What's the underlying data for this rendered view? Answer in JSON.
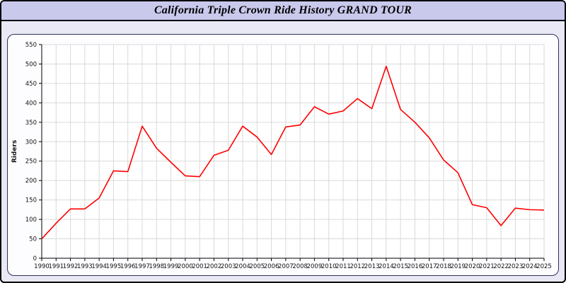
{
  "header": {
    "title": "California Triple Crown Ride History GRAND TOUR"
  },
  "chart_data": {
    "type": "line",
    "title": "California Triple Crown Ride History GRAND TOUR",
    "xlabel": "",
    "ylabel": "Riders",
    "ylim": [
      0,
      550
    ],
    "ytick_step": 50,
    "grid": true,
    "legend": "none",
    "x": [
      1990,
      1991,
      1992,
      1993,
      1994,
      1995,
      1996,
      1997,
      1998,
      1999,
      2000,
      2001,
      2002,
      2003,
      2004,
      2005,
      2006,
      2007,
      2008,
      2009,
      2010,
      2011,
      2012,
      2013,
      2014,
      2015,
      2016,
      2017,
      2018,
      2019,
      2020,
      2021,
      2022,
      2023,
      2024,
      2025
    ],
    "series": [
      {
        "name": "Riders",
        "color": "#ff0000",
        "values": [
          50,
          90,
          127,
          127,
          155,
          225,
          223,
          340,
          283,
          247,
          212,
          210,
          265,
          278,
          340,
          312,
          267,
          338,
          343,
          390,
          371,
          379,
          411,
          385,
          494,
          383,
          350,
          310,
          253,
          220,
          138,
          130,
          84,
          129,
          125,
          124
        ]
      }
    ],
    "colors": {
      "line": "#ff0000",
      "grid": "#d9d9d9",
      "axis": "#000000",
      "tick_label": "#111111",
      "plot_bg": "#ffffff",
      "panel_bg": "#fdfdff",
      "page_bg": "#e9e9f6",
      "title_bg": "#c9c9ec"
    }
  }
}
